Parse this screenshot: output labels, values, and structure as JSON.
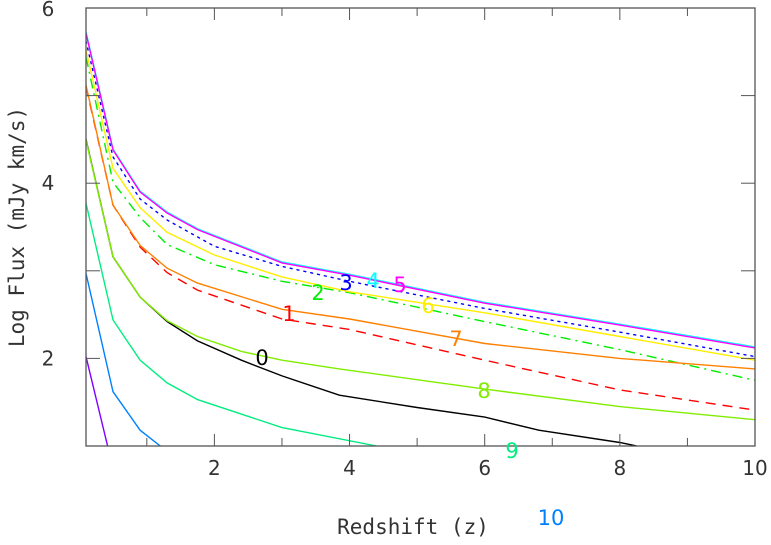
{
  "chart_data": {
    "type": "line",
    "title": "",
    "xlabel": "Redshift (z)",
    "ylabel": "Log  Flux (mJy km/s)",
    "xlim": [
      0.1,
      10
    ],
    "ylim": [
      1,
      6
    ],
    "x_ticks": [
      2,
      4,
      6,
      8,
      10
    ],
    "y_ticks": [
      2,
      4,
      6
    ],
    "x_minor_step": 1,
    "y_minor_step": 1,
    "grid": false,
    "series": [
      {
        "label": "0",
        "color": "#000000",
        "dash": "solid",
        "points": [
          [
            0.1,
            4.5
          ],
          [
            0.5,
            3.16
          ],
          [
            0.9,
            2.7
          ],
          [
            1.3,
            2.42
          ],
          [
            1.75,
            2.2
          ],
          [
            2.4,
            1.98
          ],
          [
            3.0,
            1.8
          ],
          [
            3.85,
            1.58
          ],
          [
            5,
            1.44
          ],
          [
            6,
            1.33
          ],
          [
            6.8,
            1.18
          ],
          [
            8,
            1.04
          ],
          [
            8.25,
            1.0
          ]
        ]
      },
      {
        "label": "1",
        "color": "#ff0000",
        "dash": "dashed",
        "points": [
          [
            0.1,
            5.1
          ],
          [
            0.5,
            3.75
          ],
          [
            0.9,
            3.27
          ],
          [
            1.3,
            2.98
          ],
          [
            1.75,
            2.78
          ],
          [
            3,
            2.45
          ],
          [
            4,
            2.33
          ],
          [
            6,
            1.98
          ],
          [
            8,
            1.64
          ],
          [
            10,
            1.41
          ]
        ]
      },
      {
        "label": "2",
        "color": "#00ee00",
        "dash": "dashdot",
        "points": [
          [
            0.1,
            5.44
          ],
          [
            0.5,
            4.01
          ],
          [
            0.9,
            3.61
          ],
          [
            1.3,
            3.3
          ],
          [
            2,
            3.07
          ],
          [
            3,
            2.88
          ],
          [
            4,
            2.75
          ],
          [
            6,
            2.42
          ],
          [
            8,
            2.1
          ],
          [
            10,
            1.75
          ]
        ]
      },
      {
        "label": "3",
        "color": "#0000ff",
        "dash": "dotted",
        "points": [
          [
            0.1,
            5.62
          ],
          [
            0.5,
            4.3
          ],
          [
            0.9,
            3.82
          ],
          [
            1.3,
            3.58
          ],
          [
            2,
            3.28
          ],
          [
            3,
            3.05
          ],
          [
            4,
            2.88
          ],
          [
            6,
            2.57
          ],
          [
            8,
            2.3
          ],
          [
            10,
            2.02
          ]
        ]
      },
      {
        "label": "4",
        "color": "#00ffff",
        "dash": "solid",
        "points": [
          [
            0.1,
            5.73
          ],
          [
            0.5,
            4.39
          ],
          [
            0.9,
            3.91
          ],
          [
            1.3,
            3.67
          ],
          [
            1.75,
            3.48
          ],
          [
            3,
            3.1
          ],
          [
            4,
            2.96
          ],
          [
            6,
            2.64
          ],
          [
            8,
            2.39
          ],
          [
            10,
            2.13
          ]
        ]
      },
      {
        "label": "5",
        "color": "#ff00ff",
        "dash": "solid",
        "points": [
          [
            0.1,
            5.71
          ],
          [
            0.5,
            4.38
          ],
          [
            0.9,
            3.9
          ],
          [
            1.3,
            3.66
          ],
          [
            1.75,
            3.47
          ],
          [
            3,
            3.09
          ],
          [
            4,
            2.95
          ],
          [
            6,
            2.63
          ],
          [
            8,
            2.38
          ],
          [
            10,
            2.12
          ]
        ]
      },
      {
        "label": "6",
        "color": "#ffee00",
        "dash": "solid",
        "points": [
          [
            0.1,
            5.52
          ],
          [
            0.5,
            4.17
          ],
          [
            0.9,
            3.72
          ],
          [
            1.3,
            3.44
          ],
          [
            2,
            3.18
          ],
          [
            3,
            2.93
          ],
          [
            4,
            2.76
          ],
          [
            6,
            2.52
          ],
          [
            8,
            2.25
          ],
          [
            10,
            1.98
          ]
        ]
      },
      {
        "label": "7",
        "color": "#ff8000",
        "dash": "solid",
        "points": [
          [
            0.1,
            5.12
          ],
          [
            0.5,
            3.75
          ],
          [
            0.9,
            3.29
          ],
          [
            1.3,
            3.03
          ],
          [
            1.75,
            2.86
          ],
          [
            3,
            2.56
          ],
          [
            4,
            2.45
          ],
          [
            6,
            2.17
          ],
          [
            8,
            2.0
          ],
          [
            10,
            1.88
          ]
        ]
      },
      {
        "label": "8",
        "color": "#80ee00",
        "dash": "solid",
        "points": [
          [
            0.1,
            4.49
          ],
          [
            0.5,
            3.16
          ],
          [
            0.9,
            2.7
          ],
          [
            1.3,
            2.43
          ],
          [
            1.75,
            2.25
          ],
          [
            2.4,
            2.08
          ],
          [
            3,
            1.98
          ],
          [
            3.85,
            1.88
          ],
          [
            6,
            1.65
          ],
          [
            8,
            1.45
          ],
          [
            10,
            1.3
          ]
        ]
      },
      {
        "label": "9",
        "color": "#00ee80",
        "dash": "solid",
        "points": [
          [
            0.1,
            3.77
          ],
          [
            0.5,
            2.44
          ],
          [
            0.9,
            1.98
          ],
          [
            1.3,
            1.72
          ],
          [
            1.75,
            1.53
          ],
          [
            3,
            1.21
          ],
          [
            4.4,
            1.0
          ]
        ]
      },
      {
        "label": "10",
        "color": "#0080ff",
        "dash": "solid",
        "points": [
          [
            0.1,
            2.97
          ],
          [
            0.5,
            1.62
          ],
          [
            0.9,
            1.18
          ],
          [
            1.2,
            1.0
          ]
        ]
      },
      {
        "label": "",
        "color": "#8000ff",
        "dash": "solid",
        "points": [
          [
            0.1,
            2.02
          ],
          [
            0.42,
            1.0
          ]
        ]
      }
    ]
  }
}
